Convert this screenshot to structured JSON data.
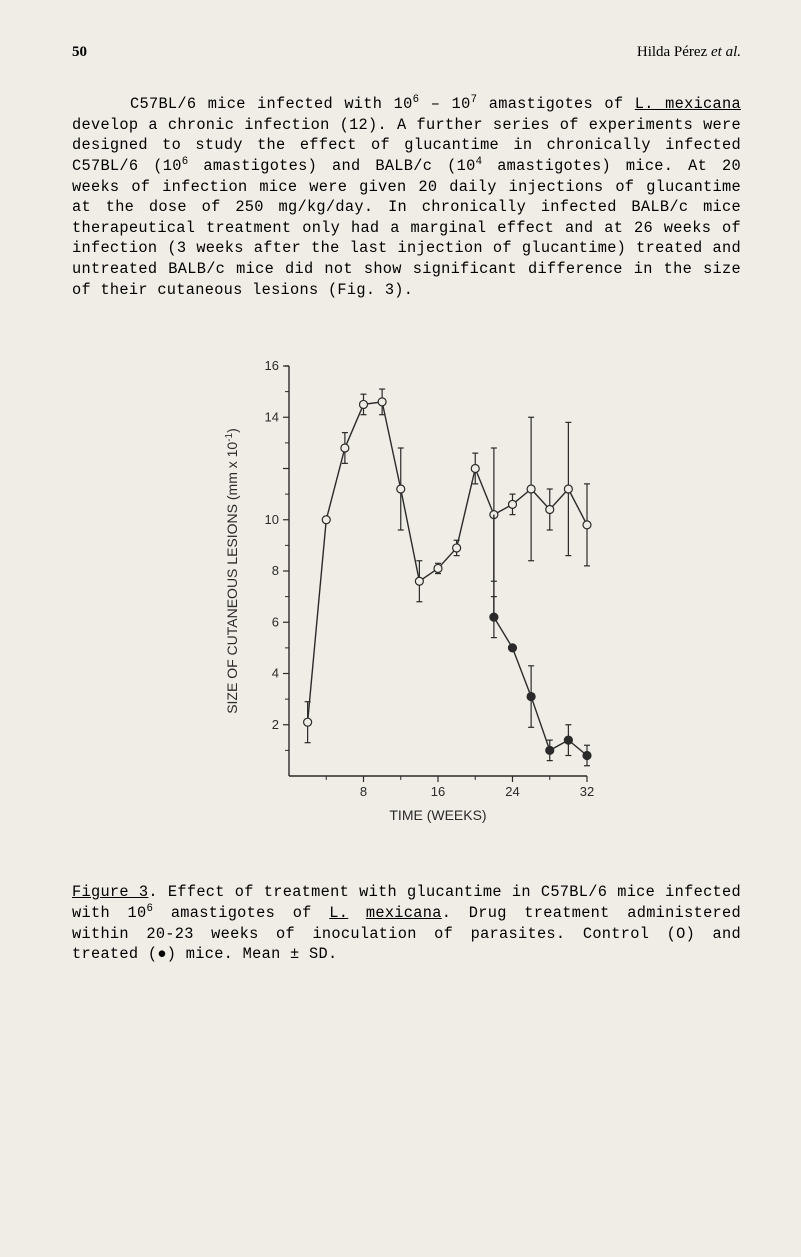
{
  "header": {
    "page_number": "50",
    "author": "Hilda Pérez ",
    "etal": "et al."
  },
  "paragraph": {
    "p1": "C57BL/6 mice infected with 10",
    "sup1": "6",
    "p2": " – 10",
    "sup2": "7",
    "p3": " amastigotes of ",
    "italic1": "L. mexicana",
    "p4": " develop a chronic infection (12). A further series of experiments were designed to study the effect of glucan­time in chronically infected C57BL/6 (10",
    "sup3": "6",
    "p5": " amastigotes) and BALB/c (10",
    "sup4": "4",
    "p6": " amastigotes) mice. At 20 weeks of infection mice were given 20 daily injections of glucantime at the dose of 250 mg/kg/day. In chronically infected BALB/c mice therapeutical treatment only had a marginal effect and at 26 weeks of infection (3 weeks after the last injection of glucantime) treated and untreated BALB/c mice did not show significant difference in the size of their cutaneous lesions (Fig. 3)."
  },
  "chart": {
    "type": "line",
    "y_label": "SIZE OF CUTANEOUS LESIONS (mm x 10⁻¹)",
    "x_label": "TIME (WEEKS)",
    "ylim": [
      0,
      16
    ],
    "xlim": [
      0,
      32
    ],
    "y_ticks": [
      2,
      4,
      6,
      8,
      10,
      14,
      16
    ],
    "y_tick_10_label": "10",
    "x_ticks": [
      8,
      16,
      24,
      32
    ],
    "stroke_color": "#2a2a2a",
    "background_color": "#f0ede6",
    "marker_style": "open-circle",
    "marker_size": 4,
    "line_width": 1.4,
    "series_control": {
      "name": "Control (O)",
      "marker": "open",
      "x": [
        2,
        4,
        6,
        8,
        10,
        12,
        14,
        16,
        18,
        20,
        22,
        24,
        26,
        28,
        30,
        32
      ],
      "y": [
        2.1,
        10.0,
        12.8,
        14.5,
        14.6,
        11.2,
        7.6,
        8.1,
        8.9,
        12.0,
        10.2,
        10.6,
        11.2,
        10.4,
        11.2,
        9.8
      ],
      "err": [
        0.8,
        0,
        0.6,
        0.4,
        0.5,
        1.6,
        0.8,
        0.2,
        0.3,
        0.6,
        2.6,
        0.4,
        2.8,
        0.8,
        2.6,
        1.6
      ]
    },
    "series_treated": {
      "name": "Treated (●)",
      "marker": "filled",
      "x": [
        22,
        24,
        26,
        28,
        30,
        32
      ],
      "y": [
        6.2,
        5.0,
        3.1,
        1.0,
        1.4,
        0.8
      ],
      "err": [
        0.8,
        0,
        1.2,
        0.4,
        0.6,
        0.4
      ]
    }
  },
  "caption": {
    "fig_label": "Figure 3",
    "c1": ". Effect of treatment with glucantime in C57BL/6 mice infected with 10",
    "sup1": "6",
    "c2": " amastigotes of ",
    "italic1": "L.",
    "c3": " ",
    "italic2": "mexicana",
    "c4": ". Drug treatment administered within 20-23 weeks of inoculation of parasites. Control (O) and treated (●) mice. Mean ± SD."
  }
}
